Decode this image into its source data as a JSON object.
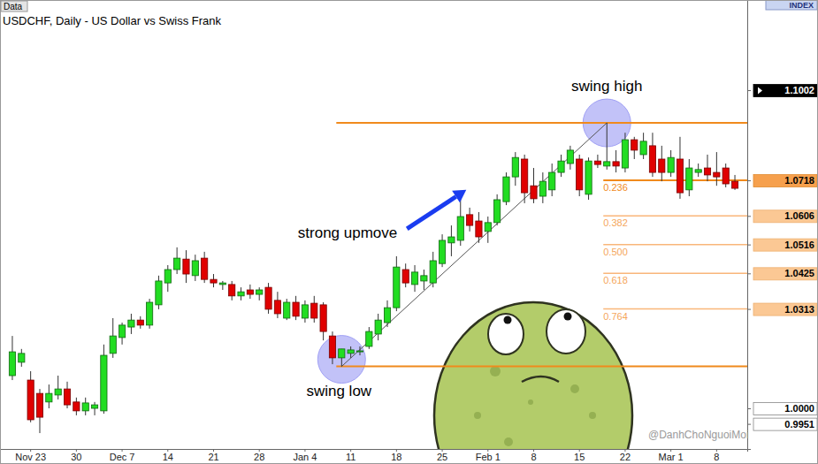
{
  "chart_data": {
    "type": "candlestick",
    "title": "USDCHF, Daily - US Dollar vs Swiss Frank",
    "source_label": "Data",
    "panel_label": "INDEX",
    "watermark": "@DanhChoNguoiMoi",
    "categories": [
      null,
      null,
      "Nov 23",
      null,
      null,
      null,
      null,
      "30",
      null,
      null,
      null,
      null,
      "Dec 7",
      null,
      null,
      null,
      null,
      "14",
      null,
      null,
      null,
      null,
      "21",
      null,
      null,
      null,
      null,
      "28",
      null,
      null,
      null,
      null,
      "Jan 4",
      null,
      null,
      null,
      null,
      "11",
      null,
      null,
      null,
      null,
      "18",
      null,
      null,
      null,
      null,
      "25",
      null,
      null,
      null,
      null,
      "Feb 1",
      null,
      null,
      null,
      null,
      "8",
      null,
      null,
      null,
      null,
      "15",
      null,
      null,
      null,
      null,
      "22",
      null,
      null,
      null,
      null,
      "Mar 1",
      null,
      null,
      null,
      null,
      "8",
      null,
      null
    ],
    "open": [
      1.0103,
      1.0145,
      1.0089,
      1.0047,
      1.002,
      1.0042,
      1.0061,
      1.002,
      0.9992,
      1.0,
      0.9992,
      1.0173,
      1.0223,
      1.0256,
      1.0278,
      1.0262,
      1.0326,
      1.0395,
      1.0437,
      1.047,
      1.0418,
      1.0473,
      1.0406,
      1.039,
      1.039,
      1.0354,
      1.0373,
      1.0359,
      1.0381,
      1.034,
      1.0284,
      1.0334,
      1.0284,
      1.0331,
      1.0326,
      1.0228,
      1.0159,
      1.0173,
      1.0178,
      1.0195,
      1.0234,
      1.027,
      1.0317,
      1.0437,
      1.039,
      1.0401,
      1.0395,
      1.0456,
      1.0521,
      1.0529,
      1.061,
      1.059,
      1.0557,
      1.0585,
      1.0651,
      1.0729,
      1.0785,
      1.0701,
      1.0668,
      1.0688,
      1.0743,
      1.0771,
      1.0785,
      1.0674,
      1.0779,
      1.0763,
      1.0777,
      1.0757,
      1.0846,
      1.0799,
      1.0827,
      1.0785,
      1.0743,
      1.0785,
      1.0688,
      1.0743,
      1.0757,
      1.0743,
      1.0757,
      1.0715
    ],
    "high": [
      1.0228,
      1.0187,
      1.0117,
      1.0061,
      1.0075,
      1.0103,
      1.0084,
      1.0034,
      1.0034,
      1.002,
      1.0201,
      1.0284,
      1.027,
      1.0298,
      1.029,
      1.0345,
      1.0418,
      1.0451,
      1.0507,
      1.0498,
      1.0484,
      1.0493,
      1.0423,
      1.0401,
      1.0401,
      1.0381,
      1.039,
      1.0381,
      1.0395,
      1.0367,
      1.0345,
      1.0354,
      1.034,
      1.0354,
      1.0334,
      1.0242,
      1.0187,
      1.0195,
      1.0195,
      1.0256,
      1.0298,
      1.034,
      1.0479,
      1.0456,
      1.0451,
      1.0437,
      1.0493,
      1.0548,
      1.0576,
      1.066,
      1.0632,
      1.0618,
      1.0604,
      1.0674,
      1.0743,
      1.0807,
      1.0799,
      1.0757,
      1.0743,
      1.0771,
      1.0799,
      1.0827,
      1.0799,
      1.079,
      1.0799,
      1.0899,
      1.0813,
      1.0868,
      1.0855,
      1.0868,
      1.0868,
      1.0827,
      1.0813,
      1.0855,
      1.0785,
      1.0771,
      1.0799,
      1.0807,
      1.0771,
      1.0735
    ],
    "low": [
      1.0089,
      1.0131,
      0.9956,
      0.9922,
      1.0,
      1.0028,
      1.0,
      0.9978,
      0.9978,
      0.9978,
      0.9983,
      1.0159,
      1.0201,
      1.0234,
      1.0251,
      1.0251,
      1.0312,
      1.0367,
      1.0423,
      1.0395,
      1.0401,
      1.0395,
      1.0381,
      1.0373,
      1.034,
      1.034,
      1.0345,
      1.034,
      1.0298,
      1.0284,
      1.0278,
      1.0278,
      1.027,
      1.027,
      1.0214,
      1.0139,
      1.0132,
      1.0159,
      1.0167,
      1.0187,
      1.0214,
      1.0256,
      1.0306,
      1.0381,
      1.0367,
      1.0373,
      1.0381,
      1.0445,
      1.0479,
      1.0512,
      1.0557,
      1.0521,
      1.0521,
      1.0576,
      1.064,
      1.0701,
      1.0646,
      1.0646,
      1.0646,
      1.0668,
      1.0729,
      1.0752,
      1.0668,
      1.0657,
      1.0757,
      1.0752,
      1.0743,
      1.0743,
      1.0785,
      1.0785,
      1.0729,
      1.0715,
      1.0729,
      1.066,
      1.0668,
      1.0729,
      1.0715,
      1.0701,
      1.0696,
      1.0688
    ],
    "close": [
      1.0178,
      1.0173,
      0.9964,
      0.9972,
      1.0047,
      1.0061,
      1.0011,
      0.9992,
      1.0017,
      1.0011,
      1.0167,
      1.0228,
      1.0262,
      1.0278,
      1.0262,
      1.0334,
      1.0401,
      1.0437,
      1.0473,
      1.0423,
      1.0465,
      1.0406,
      1.0395,
      1.0395,
      1.0354,
      1.0367,
      1.0359,
      1.0373,
      1.0312,
      1.0298,
      1.0334,
      1.029,
      1.0326,
      1.0284,
      1.0242,
      1.0159,
      1.0187,
      1.0184,
      1.0181,
      1.0242,
      1.0278,
      1.0317,
      1.0445,
      1.0395,
      1.0429,
      1.0418,
      1.0465,
      1.0529,
      1.054,
      1.0604,
      1.0576,
      1.054,
      1.0585,
      1.0657,
      1.0729,
      1.079,
      1.0679,
      1.066,
      1.0715,
      1.0743,
      1.0779,
      1.0813,
      1.0688,
      1.0779,
      1.0768,
      1.0777,
      1.0763,
      1.0846,
      1.0813,
      1.0841,
      1.0743,
      1.0743,
      1.079,
      1.0679,
      1.0757,
      1.0752,
      1.0735,
      1.0729,
      1.0707,
      1.0693
    ],
    "ylim": [
      0.9872,
      1.1286
    ],
    "yticks": [
      0.9951,
      {
        "value": 1,
        "label": "1.0000"
      },
      1.0313,
      1.0425,
      1.0516,
      1.0606,
      1.0718,
      1.1002
    ],
    "fibonacci": {
      "high_index": 65,
      "low_index": 36,
      "high": 1.0899,
      "low": 1.0132,
      "high_label": "swing high",
      "low_label": "swing low",
      "move_label": "strong upmove",
      "levels": [
        {
          "ratio": 0.236,
          "price": 1.0718
        },
        {
          "ratio": 0.382,
          "price": 1.0606
        },
        {
          "ratio": 0.5,
          "label": "0.500",
          "price": 1.0516
        },
        {
          "ratio": 0.618,
          "price": 1.0425
        },
        {
          "ratio": 0.764,
          "price": 1.0313
        }
      ]
    }
  }
}
